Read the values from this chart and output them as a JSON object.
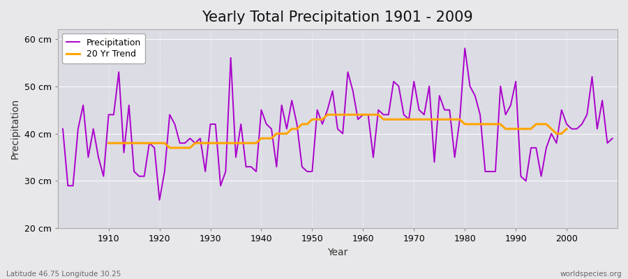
{
  "title": "Yearly Total Precipitation 1901 - 2009",
  "xlabel": "Year",
  "ylabel": "Precipitation",
  "subtitle": "Latitude 46.75 Longitude 30.25",
  "watermark": "worldspecies.org",
  "years": [
    1901,
    1902,
    1903,
    1904,
    1905,
    1906,
    1907,
    1908,
    1909,
    1910,
    1911,
    1912,
    1913,
    1914,
    1915,
    1916,
    1917,
    1918,
    1919,
    1920,
    1921,
    1922,
    1923,
    1924,
    1925,
    1926,
    1927,
    1928,
    1929,
    1930,
    1931,
    1932,
    1933,
    1934,
    1935,
    1936,
    1937,
    1938,
    1939,
    1940,
    1941,
    1942,
    1943,
    1944,
    1945,
    1946,
    1947,
    1948,
    1949,
    1950,
    1951,
    1952,
    1953,
    1954,
    1955,
    1956,
    1957,
    1958,
    1959,
    1960,
    1961,
    1962,
    1963,
    1964,
    1965,
    1966,
    1967,
    1968,
    1969,
    1970,
    1971,
    1972,
    1973,
    1974,
    1975,
    1976,
    1977,
    1978,
    1979,
    1980,
    1981,
    1982,
    1983,
    1984,
    1985,
    1986,
    1987,
    1988,
    1989,
    1990,
    1991,
    1992,
    1993,
    1994,
    1995,
    1996,
    1997,
    1998,
    1999,
    2000,
    2001,
    2002,
    2003,
    2004,
    2005,
    2006,
    2007,
    2008,
    2009
  ],
  "precipitation": [
    41,
    29,
    29,
    41,
    46,
    35,
    41,
    35,
    31,
    44,
    44,
    53,
    36,
    46,
    32,
    31,
    31,
    38,
    37,
    26,
    32,
    44,
    42,
    38,
    38,
    39,
    38,
    39,
    32,
    42,
    42,
    29,
    32,
    56,
    35,
    42,
    33,
    33,
    32,
    45,
    42,
    41,
    33,
    46,
    41,
    47,
    42,
    33,
    32,
    32,
    45,
    42,
    45,
    49,
    41,
    40,
    53,
    49,
    43,
    44,
    44,
    35,
    45,
    44,
    44,
    51,
    50,
    44,
    43,
    51,
    45,
    44,
    50,
    34,
    48,
    45,
    45,
    35,
    43,
    58,
    50,
    48,
    44,
    32,
    32,
    32,
    50,
    44,
    46,
    51,
    31,
    30,
    37,
    37,
    31,
    37,
    40,
    38,
    45,
    42,
    41,
    41,
    42,
    44,
    52,
    41,
    47,
    38,
    39
  ],
  "trend_start_year": 1910,
  "trend": [
    38,
    38,
    38,
    38,
    38,
    38,
    38,
    38,
    38,
    38,
    38,
    38,
    37,
    37,
    37,
    37,
    37,
    38,
    38,
    38,
    38,
    38,
    38,
    38,
    38,
    38,
    38,
    38,
    38,
    38,
    39,
    39,
    39,
    40,
    40,
    40,
    41,
    41,
    42,
    42,
    43,
    43,
    43,
    44,
    44,
    44,
    44,
    44,
    44,
    44,
    44,
    44,
    44,
    44,
    43,
    43,
    43,
    43,
    43,
    43,
    43,
    43,
    43,
    43,
    43,
    43,
    43,
    43,
    43,
    43,
    42,
    42,
    42,
    42,
    42,
    42,
    42,
    42,
    41,
    41,
    41,
    41,
    41,
    41,
    42,
    42,
    42,
    41,
    40,
    40,
    41
  ],
  "ylim": [
    20,
    62
  ],
  "yticks": [
    20,
    30,
    40,
    50,
    60
  ],
  "ytick_labels": [
    "20 cm",
    "30 cm",
    "40 cm",
    "50 cm",
    "60 cm"
  ],
  "xlim": [
    1900,
    2010
  ],
  "xticks": [
    1910,
    1920,
    1930,
    1940,
    1950,
    1960,
    1970,
    1980,
    1990,
    2000
  ],
  "precipitation_color": "#AA00CC",
  "trend_color": "#FFA500",
  "fig_bg_color": "#E8E8EA",
  "plot_bg_color": "#DCDCE4",
  "grid_color": "#FFFFFF",
  "title_fontsize": 15,
  "legend_fontsize": 9,
  "axis_label_fontsize": 10,
  "tick_fontsize": 9
}
